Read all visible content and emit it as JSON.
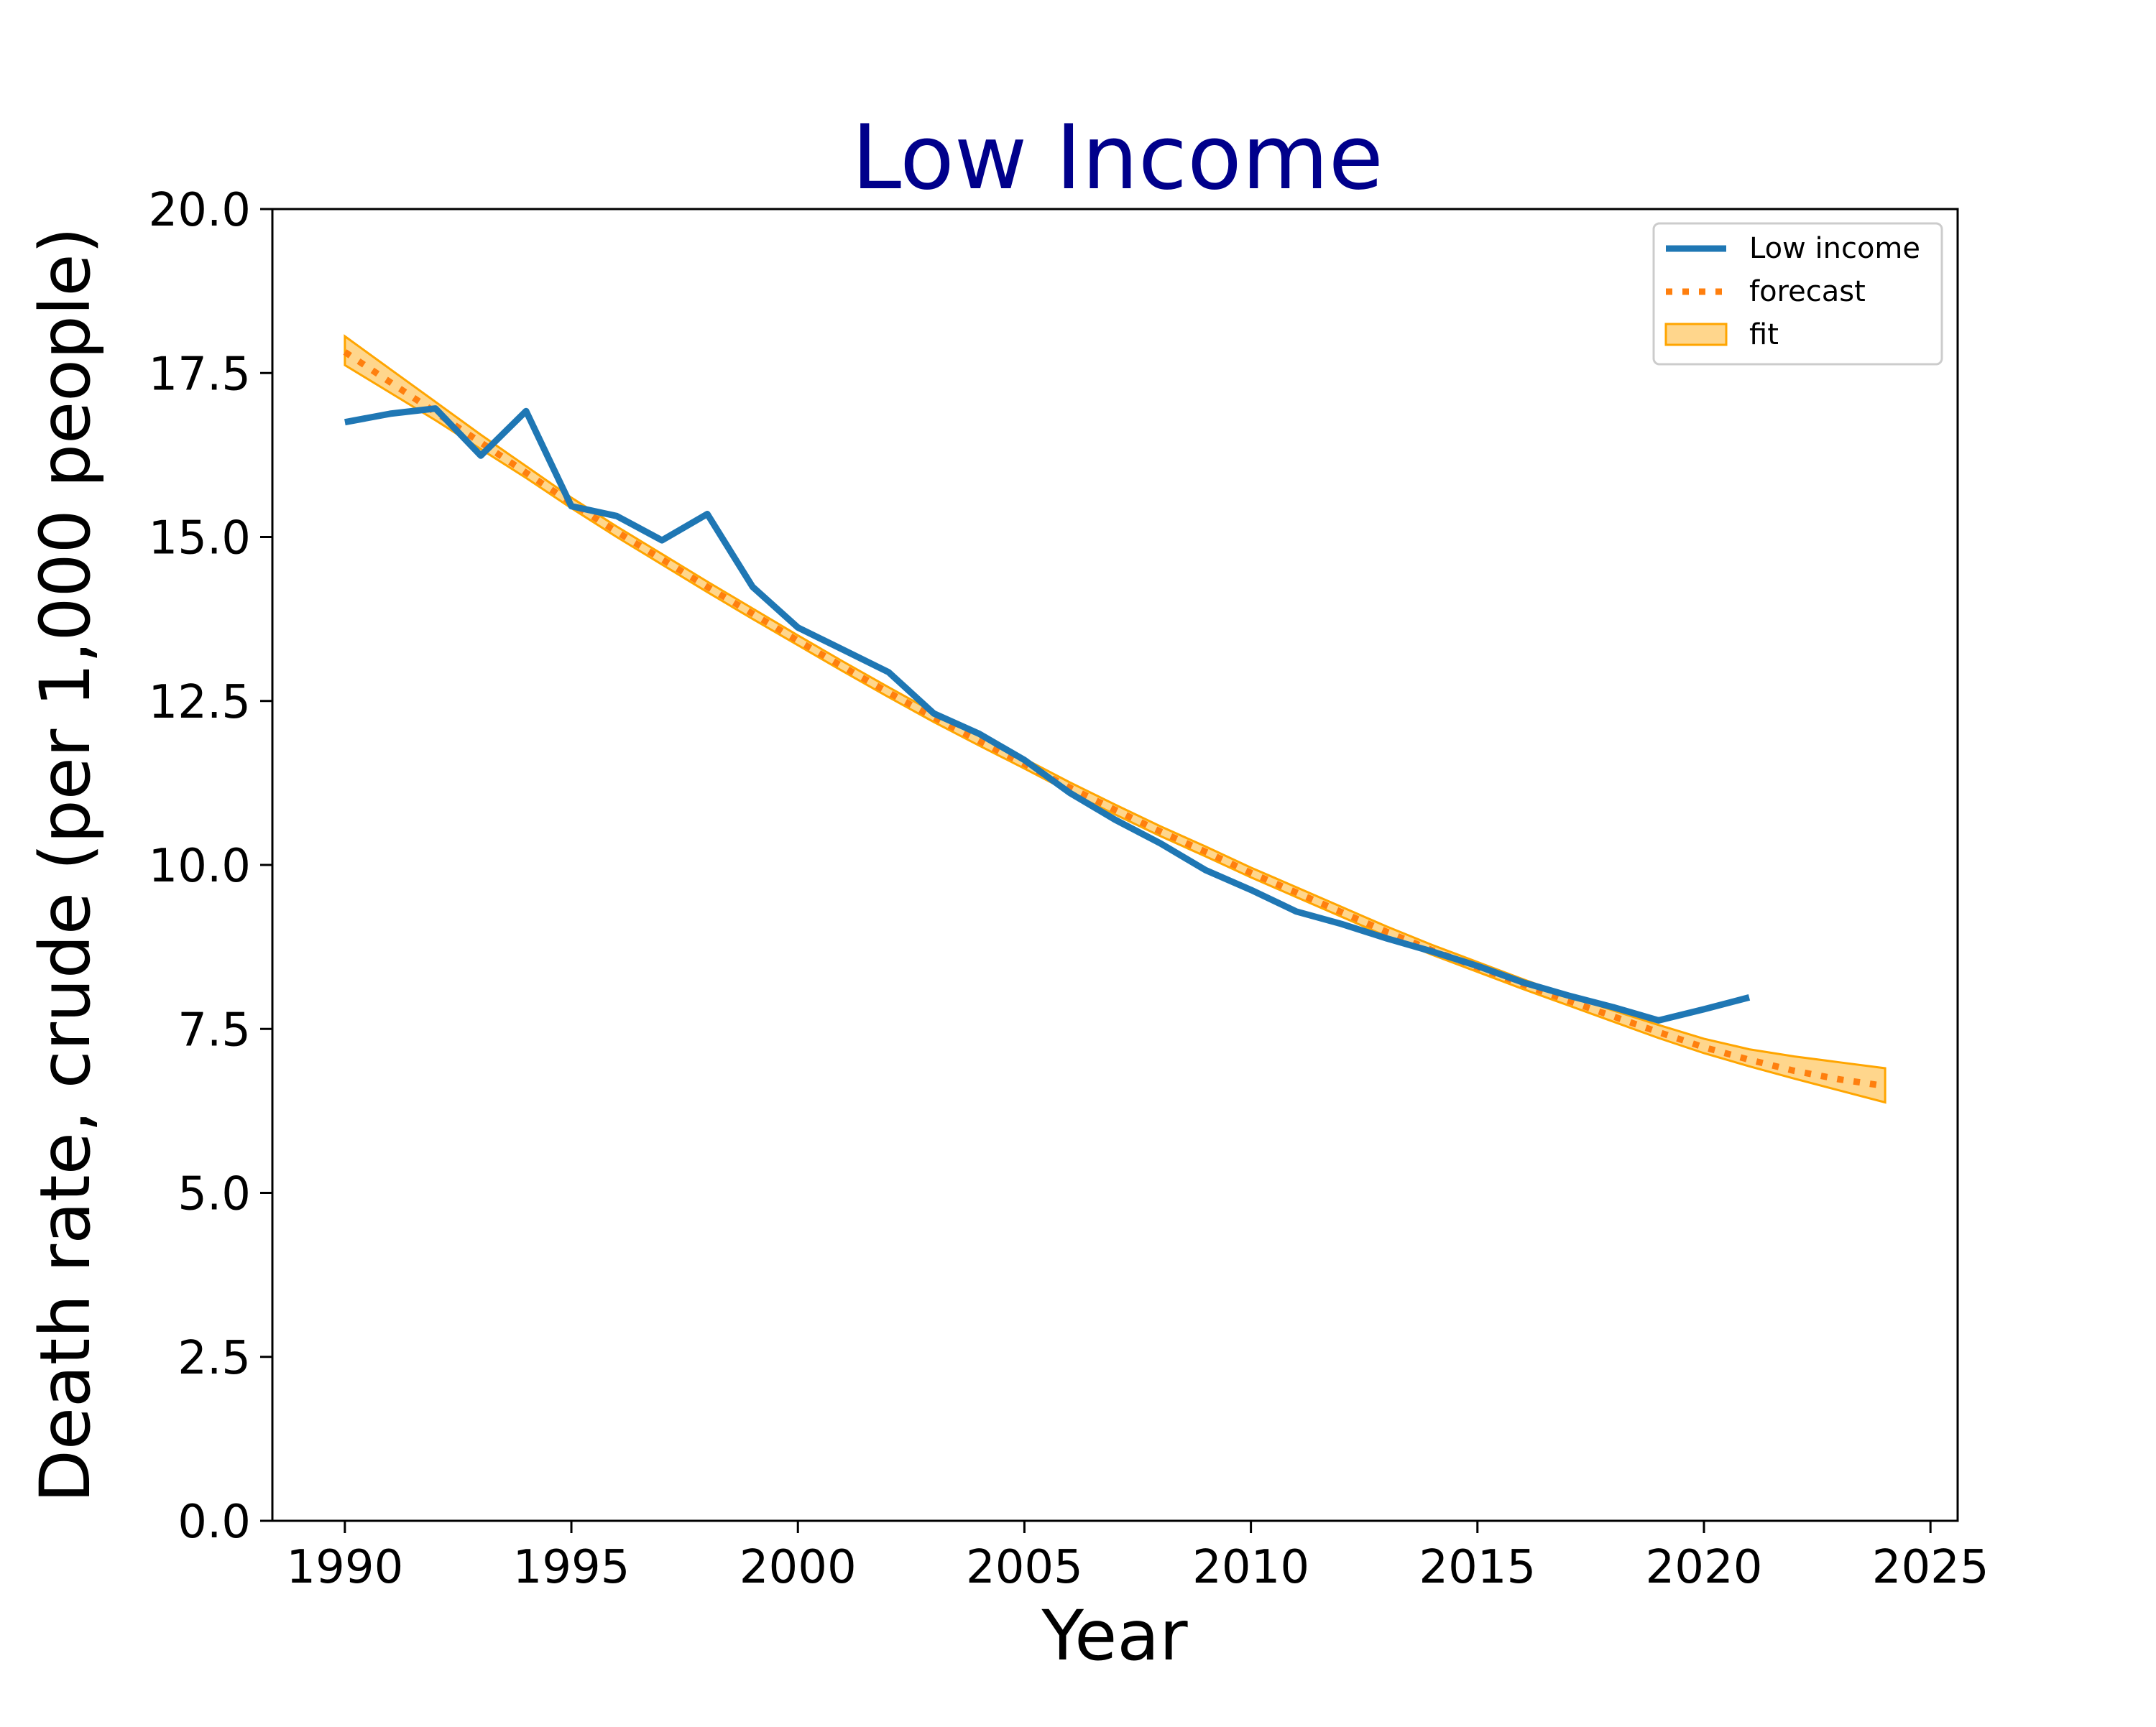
{
  "chart_data": {
    "type": "line",
    "title": "Low Income",
    "xlabel": "Year",
    "ylabel": "Death rate, crude (per 1,000 people)",
    "xlim": [
      1988.4,
      2025.6
    ],
    "ylim": [
      0,
      20
    ],
    "x_ticks": [
      1990,
      1995,
      2000,
      2005,
      2010,
      2015,
      2020,
      2025
    ],
    "y_ticks": [
      0.0,
      2.5,
      5.0,
      7.5,
      10.0,
      12.5,
      15.0,
      17.5,
      20.0
    ],
    "x_tick_labels": [
      "1990",
      "1995",
      "2000",
      "2005",
      "2010",
      "2015",
      "2020",
      "2025"
    ],
    "y_tick_labels": [
      "0.0",
      "2.5",
      "5.0",
      "7.5",
      "10.0",
      "12.5",
      "15.0",
      "17.5",
      "20.0"
    ],
    "grid": false,
    "legend_position": "top-right",
    "series": [
      {
        "name": "Low income",
        "style": "solid",
        "color": "#1f77b4",
        "x": [
          1990,
          1991,
          1992,
          1993,
          1994,
          1995,
          1996,
          1997,
          1998,
          1999,
          2000,
          2001,
          2002,
          2003,
          2004,
          2005,
          2006,
          2007,
          2008,
          2009,
          2010,
          2011,
          2012,
          2013,
          2014,
          2015,
          2016,
          2017,
          2018,
          2019,
          2020,
          2021
        ],
        "y": [
          16.75,
          16.88,
          16.96,
          16.24,
          16.92,
          15.47,
          15.32,
          14.95,
          15.35,
          14.24,
          13.62,
          13.28,
          12.94,
          12.31,
          12.0,
          11.6,
          11.1,
          10.69,
          10.33,
          9.92,
          9.62,
          9.29,
          9.1,
          8.88,
          8.68,
          8.46,
          8.21,
          8.01,
          7.83,
          7.63,
          7.8,
          7.98
        ]
      },
      {
        "name": "forecast",
        "style": "dotted",
        "color": "#ff7f0e",
        "x": [
          1990,
          1991,
          1992,
          1993,
          1994,
          1995,
          1996,
          1997,
          1998,
          1999,
          2000,
          2001,
          2002,
          2003,
          2004,
          2005,
          2006,
          2007,
          2008,
          2009,
          2010,
          2011,
          2012,
          2013,
          2014,
          2015,
          2016,
          2017,
          2018,
          2019,
          2020,
          2021,
          2022,
          2023,
          2024
        ],
        "y": [
          17.82,
          17.36,
          16.9,
          16.44,
          15.98,
          15.52,
          15.08,
          14.66,
          14.24,
          13.83,
          13.42,
          13.02,
          12.63,
          12.25,
          11.89,
          11.54,
          11.18,
          10.84,
          10.51,
          10.2,
          9.88,
          9.58,
          9.28,
          8.98,
          8.7,
          8.44,
          8.18,
          7.93,
          7.69,
          7.45,
          7.22,
          7.03,
          6.86,
          6.73,
          6.63
        ]
      },
      {
        "name": "fit",
        "style": "band",
        "color": "#ffa500",
        "x": [
          1990,
          1991,
          1992,
          1993,
          1994,
          1995,
          1996,
          1997,
          1998,
          1999,
          2000,
          2001,
          2002,
          2003,
          2004,
          2005,
          2006,
          2007,
          2008,
          2009,
          2010,
          2011,
          2012,
          2013,
          2014,
          2015,
          2016,
          2017,
          2018,
          2019,
          2020,
          2021,
          2022,
          2023,
          2024
        ],
        "lower": [
          17.62,
          17.2,
          16.78,
          16.34,
          15.9,
          15.44,
          15.0,
          14.58,
          14.16,
          13.75,
          13.35,
          12.95,
          12.56,
          12.18,
          11.82,
          11.47,
          11.11,
          10.77,
          10.44,
          10.13,
          9.81,
          9.51,
          9.21,
          8.91,
          8.63,
          8.37,
          8.11,
          7.86,
          7.61,
          7.36,
          7.13,
          6.93,
          6.74,
          6.56,
          6.38
        ],
        "upper": [
          18.06,
          17.56,
          17.06,
          16.56,
          16.08,
          15.6,
          15.16,
          14.74,
          14.32,
          13.91,
          13.5,
          13.1,
          12.71,
          12.33,
          11.97,
          11.62,
          11.26,
          10.92,
          10.59,
          10.28,
          9.96,
          9.66,
          9.36,
          9.06,
          8.78,
          8.52,
          8.26,
          8.01,
          7.78,
          7.56,
          7.35,
          7.19,
          7.08,
          6.99,
          6.9
        ]
      }
    ]
  }
}
